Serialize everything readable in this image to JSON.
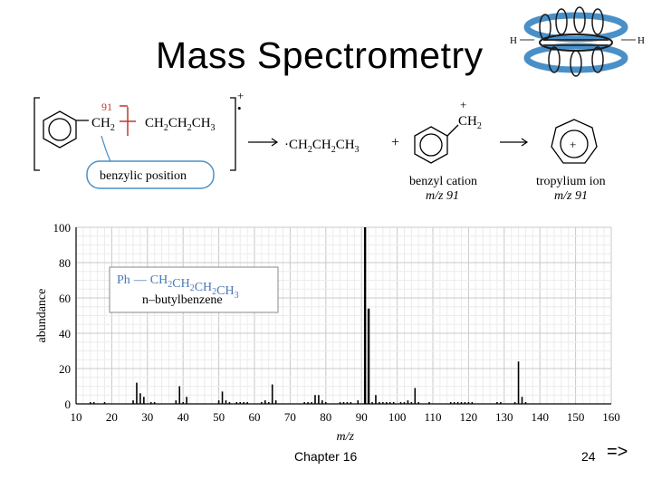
{
  "slide": {
    "title": "Mass Spectrometry",
    "chapter": "Chapter 16",
    "page": "24",
    "next": "=>"
  },
  "scheme": {
    "mass_label": "91",
    "charge": "+",
    "radical_dot": "•",
    "ch2": "CH",
    "ch2_sub": "2",
    "propyl_parts": [
      "CH",
      "2",
      "CH",
      "2",
      "CH",
      "3"
    ],
    "benzylic_label": "benzylic position",
    "radical_product": "·CH",
    "plus_sign": "+",
    "benzyl_name": "benzyl cation",
    "benzyl_mz": "m/z 91",
    "tropylium_name": "tropylium ion",
    "tropylium_mz": "m/z 91",
    "h_left": "H",
    "h_right": "H"
  },
  "chart_data": {
    "type": "bar",
    "xlabel": "m/z",
    "ylabel": "abundance",
    "xlim": [
      10,
      160
    ],
    "ylim": [
      0,
      100
    ],
    "x_ticks": [
      10,
      20,
      30,
      40,
      50,
      60,
      70,
      80,
      90,
      100,
      110,
      120,
      130,
      140,
      150,
      160
    ],
    "y_ticks": [
      0,
      20,
      40,
      60,
      80,
      100
    ],
    "grid": true,
    "legend_box": {
      "formula_prefix": "Ph",
      "formula": "CH2CH2CH2CH3",
      "name": "n–butylbenzene"
    },
    "peaks": [
      {
        "x": 14,
        "y": 1
      },
      {
        "x": 15,
        "y": 1
      },
      {
        "x": 18,
        "y": 1
      },
      {
        "x": 26,
        "y": 2
      },
      {
        "x": 27,
        "y": 12
      },
      {
        "x": 28,
        "y": 6
      },
      {
        "x": 29,
        "y": 4
      },
      {
        "x": 31,
        "y": 1
      },
      {
        "x": 32,
        "y": 1
      },
      {
        "x": 38,
        "y": 2
      },
      {
        "x": 39,
        "y": 10
      },
      {
        "x": 40,
        "y": 1
      },
      {
        "x": 41,
        "y": 4
      },
      {
        "x": 50,
        "y": 2
      },
      {
        "x": 51,
        "y": 7
      },
      {
        "x": 52,
        "y": 2
      },
      {
        "x": 53,
        "y": 1
      },
      {
        "x": 55,
        "y": 1
      },
      {
        "x": 56,
        "y": 1
      },
      {
        "x": 57,
        "y": 1
      },
      {
        "x": 58,
        "y": 1
      },
      {
        "x": 62,
        "y": 1
      },
      {
        "x": 63,
        "y": 2
      },
      {
        "x": 64,
        "y": 1
      },
      {
        "x": 65,
        "y": 11
      },
      {
        "x": 66,
        "y": 2
      },
      {
        "x": 74,
        "y": 1
      },
      {
        "x": 75,
        "y": 1
      },
      {
        "x": 76,
        "y": 1
      },
      {
        "x": 77,
        "y": 5
      },
      {
        "x": 78,
        "y": 5
      },
      {
        "x": 79,
        "y": 2
      },
      {
        "x": 80,
        "y": 1
      },
      {
        "x": 84,
        "y": 1
      },
      {
        "x": 85,
        "y": 1
      },
      {
        "x": 86,
        "y": 1
      },
      {
        "x": 87,
        "y": 1
      },
      {
        "x": 89,
        "y": 2
      },
      {
        "x": 91,
        "y": 100
      },
      {
        "x": 92,
        "y": 54
      },
      {
        "x": 93,
        "y": 1
      },
      {
        "x": 94,
        "y": 5
      },
      {
        "x": 95,
        "y": 1
      },
      {
        "x": 96,
        "y": 1
      },
      {
        "x": 97,
        "y": 1
      },
      {
        "x": 98,
        "y": 1
      },
      {
        "x": 99,
        "y": 1
      },
      {
        "x": 101,
        "y": 1
      },
      {
        "x": 102,
        "y": 1
      },
      {
        "x": 103,
        "y": 2
      },
      {
        "x": 104,
        "y": 1
      },
      {
        "x": 105,
        "y": 9
      },
      {
        "x": 106,
        "y": 1
      },
      {
        "x": 109,
        "y": 1
      },
      {
        "x": 115,
        "y": 1
      },
      {
        "x": 116,
        "y": 1
      },
      {
        "x": 117,
        "y": 1
      },
      {
        "x": 118,
        "y": 1
      },
      {
        "x": 119,
        "y": 1
      },
      {
        "x": 120,
        "y": 1
      },
      {
        "x": 121,
        "y": 1
      },
      {
        "x": 128,
        "y": 1
      },
      {
        "x": 129,
        "y": 1
      },
      {
        "x": 133,
        "y": 1
      },
      {
        "x": 134,
        "y": 24
      },
      {
        "x": 135,
        "y": 4
      },
      {
        "x": 136,
        "y": 1
      }
    ]
  }
}
